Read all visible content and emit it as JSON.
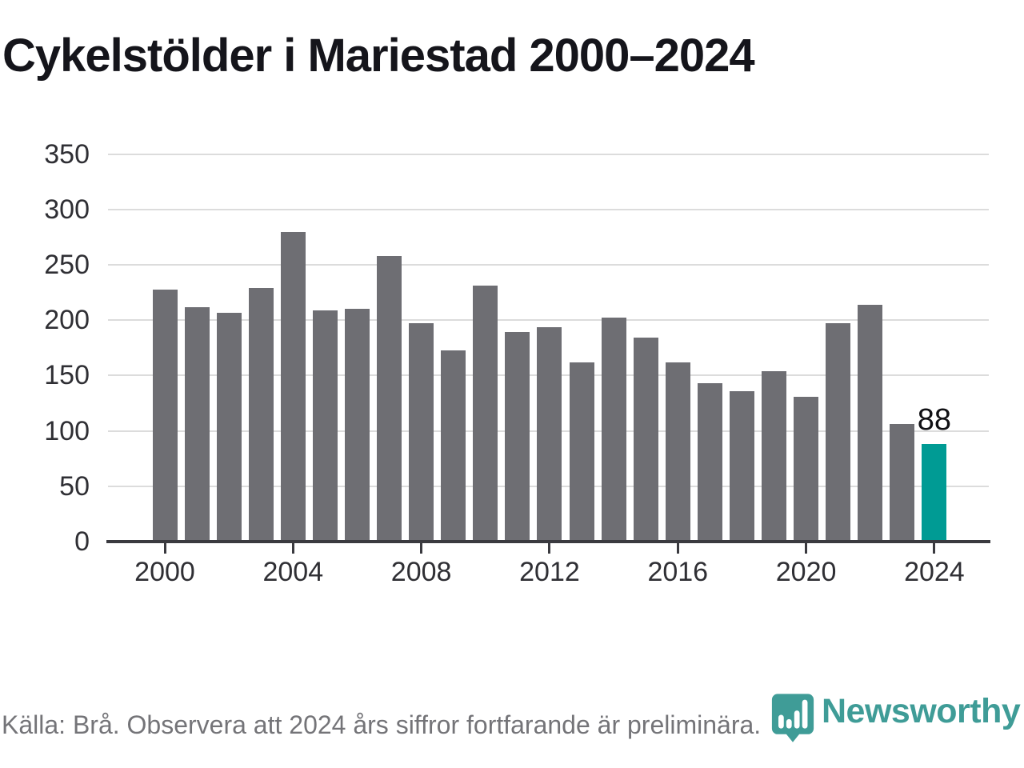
{
  "title": "Cykelstölder i Mariestad 2000–2024",
  "chart_data": {
    "type": "bar",
    "title": "Cykelstölder i Mariestad 2000–2024",
    "x": [
      2000,
      2001,
      2002,
      2003,
      2004,
      2005,
      2006,
      2007,
      2008,
      2009,
      2010,
      2011,
      2012,
      2013,
      2014,
      2015,
      2016,
      2017,
      2018,
      2019,
      2020,
      2021,
      2022,
      2023,
      2024
    ],
    "values": [
      228,
      212,
      207,
      229,
      280,
      209,
      210,
      258,
      197,
      173,
      231,
      189,
      194,
      162,
      202,
      184,
      162,
      143,
      136,
      154,
      131,
      197,
      214,
      106,
      88
    ],
    "highlight_index": 24,
    "highlight_value_label": "88",
    "bar_color": "#6E6E73",
    "highlight_color": "#009B94",
    "y_ticks": [
      0,
      50,
      100,
      150,
      200,
      250,
      300,
      350
    ],
    "x_tick_labels": [
      "2000",
      "2004",
      "2008",
      "2012",
      "2016",
      "2020",
      "2024"
    ],
    "ylim": [
      0,
      350
    ],
    "grid": "horizontal",
    "legend": "none",
    "xlabel": "",
    "ylabel": ""
  },
  "footer": {
    "source_note": "Källa: Brå. Observera att 2024 års siffror fortfarande är preliminära."
  },
  "logo": {
    "brand": "Newsworthy",
    "icon": "newsworthy-bar-chart-pin-icon",
    "color": "#3F9C97"
  }
}
